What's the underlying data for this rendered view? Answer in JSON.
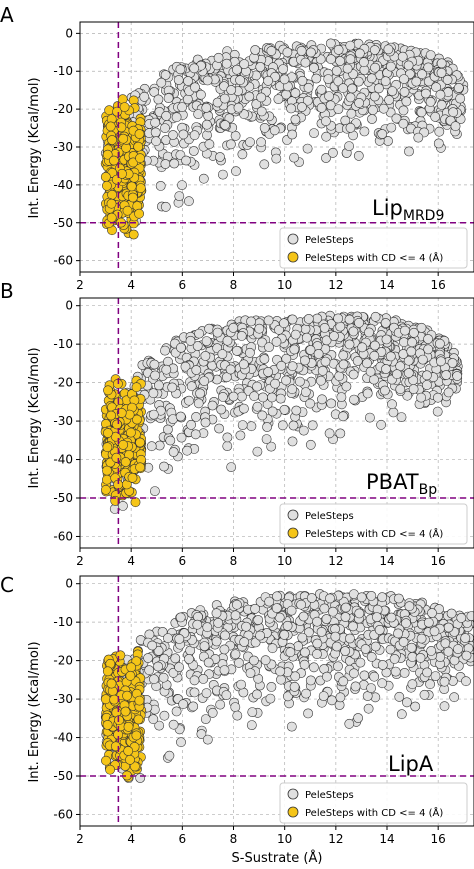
{
  "figure": {
    "ylabel": "Int. Energy (Kcal/mol)",
    "xlabel": "S-Sustrate (Å)"
  },
  "colors": {
    "gray_fill": "#e0e0e0",
    "yellow_fill": "#f5c518",
    "marker_edge": "#333333",
    "threshold_line": "#800080",
    "grid": "#b0b0b0"
  },
  "chart_data": [
    {
      "type": "scatter",
      "panel_letter": "A",
      "annotation": "Lip",
      "annotation_sub": "MRD9",
      "xlim": [
        2,
        17.4
      ],
      "ylim": [
        -63,
        3
      ],
      "xticks": [
        "2",
        "4",
        "6",
        "8",
        "10",
        "12",
        "14",
        "16"
      ],
      "yticks": [
        "0",
        "-10",
        "-20",
        "-30",
        "-40",
        "-50",
        "-60"
      ],
      "show_xticks": true,
      "grid": true,
      "vline_x": 3.5,
      "hline_y": -50,
      "legend_placement": "lower-right",
      "series": [
        {
          "name": "PeleSteps",
          "color": "#e0e0e0",
          "x_range": [
            3.0,
            17.0
          ],
          "y_range": [
            -57,
            -2
          ],
          "envelope": {
            "x": [
              3.0,
              4.4,
              6.0,
              8.0,
              10.0,
              12.0,
              14.0,
              15.5,
              16.5,
              17.0
            ],
            "top": [
              -22,
              -14,
              -8,
              -4,
              -3,
              -2.5,
              -3,
              -5,
              -8,
              -13
            ],
            "bottom": [
              -52,
              -52,
              -45,
              -40,
              -36,
              -34,
              -33,
              -32,
              -30,
              -26
            ]
          }
        },
        {
          "name": "PeleSteps with CD <= 4 (Å)",
          "color": "#f5c518",
          "x_range": [
            3.0,
            4.4
          ],
          "y_range": [
            -57,
            -15
          ]
        }
      ]
    },
    {
      "type": "scatter",
      "panel_letter": "B",
      "annotation": "PBAT",
      "annotation_sub": "Bp",
      "xlim": [
        2,
        17.4
      ],
      "ylim": [
        -63,
        2
      ],
      "xticks": [
        "2",
        "4",
        "6",
        "8",
        "10",
        "12",
        "14",
        "16"
      ],
      "yticks": [
        "0",
        "-10",
        "-20",
        "-30",
        "-40",
        "-50",
        "-60"
      ],
      "show_xticks": true,
      "grid": true,
      "vline_x": 3.5,
      "hline_y": -50,
      "legend_placement": "lower-right",
      "series": [
        {
          "name": "PeleSteps",
          "color": "#e0e0e0",
          "x_range": [
            3.0,
            16.8
          ],
          "y_range": [
            -55,
            -2
          ],
          "envelope": {
            "x": [
              3.0,
              4.4,
              6.0,
              8.0,
              10.0,
              12.0,
              14.0,
              15.5,
              16.5,
              16.8
            ],
            "top": [
              -30,
              -15,
              -8,
              -4,
              -3,
              -2.5,
              -3,
              -6,
              -10,
              -15
            ],
            "bottom": [
              -54,
              -52,
              -46,
              -42,
              -38,
              -35,
              -33,
              -32,
              -28,
              -25
            ]
          }
        },
        {
          "name": "PeleSteps with CD <= 4 (Å)",
          "color": "#f5c518",
          "x_range": [
            3.0,
            4.4
          ],
          "y_range": [
            -54,
            -16
          ]
        }
      ]
    },
    {
      "type": "scatter",
      "panel_letter": "C",
      "annotation": "LipA",
      "annotation_sub": "",
      "xlim": [
        2,
        17.4
      ],
      "ylim": [
        -63,
        2
      ],
      "xticks": [
        "2",
        "4",
        "6",
        "8",
        "10",
        "12",
        "14",
        "16"
      ],
      "yticks": [
        "0",
        "-10",
        "-20",
        "-30",
        "-40",
        "-50",
        "-60"
      ],
      "show_xticks": true,
      "grid": true,
      "vline_x": 3.5,
      "hline_y": -50,
      "legend_placement": "lower-right",
      "series": [
        {
          "name": "PeleSteps",
          "color": "#e0e0e0",
          "x_range": [
            3.0,
            17.3
          ],
          "y_range": [
            -56,
            -2
          ],
          "envelope": {
            "x": [
              3.0,
              4.4,
              6.0,
              8.0,
              10.0,
              12.0,
              14.0,
              15.5,
              16.5,
              17.3
            ],
            "top": [
              -28,
              -14,
              -8,
              -4,
              -3,
              -2.5,
              -3,
              -5,
              -7,
              -8
            ],
            "bottom": [
              -56,
              -52,
              -46,
              -43,
              -40,
              -37,
              -35,
              -33,
              -32,
              -30
            ]
          }
        },
        {
          "name": "PeleSteps with CD <= 4 (Å)",
          "color": "#f5c518",
          "x_range": [
            3.0,
            4.4
          ],
          "y_range": [
            -53,
            -14
          ]
        }
      ]
    }
  ]
}
